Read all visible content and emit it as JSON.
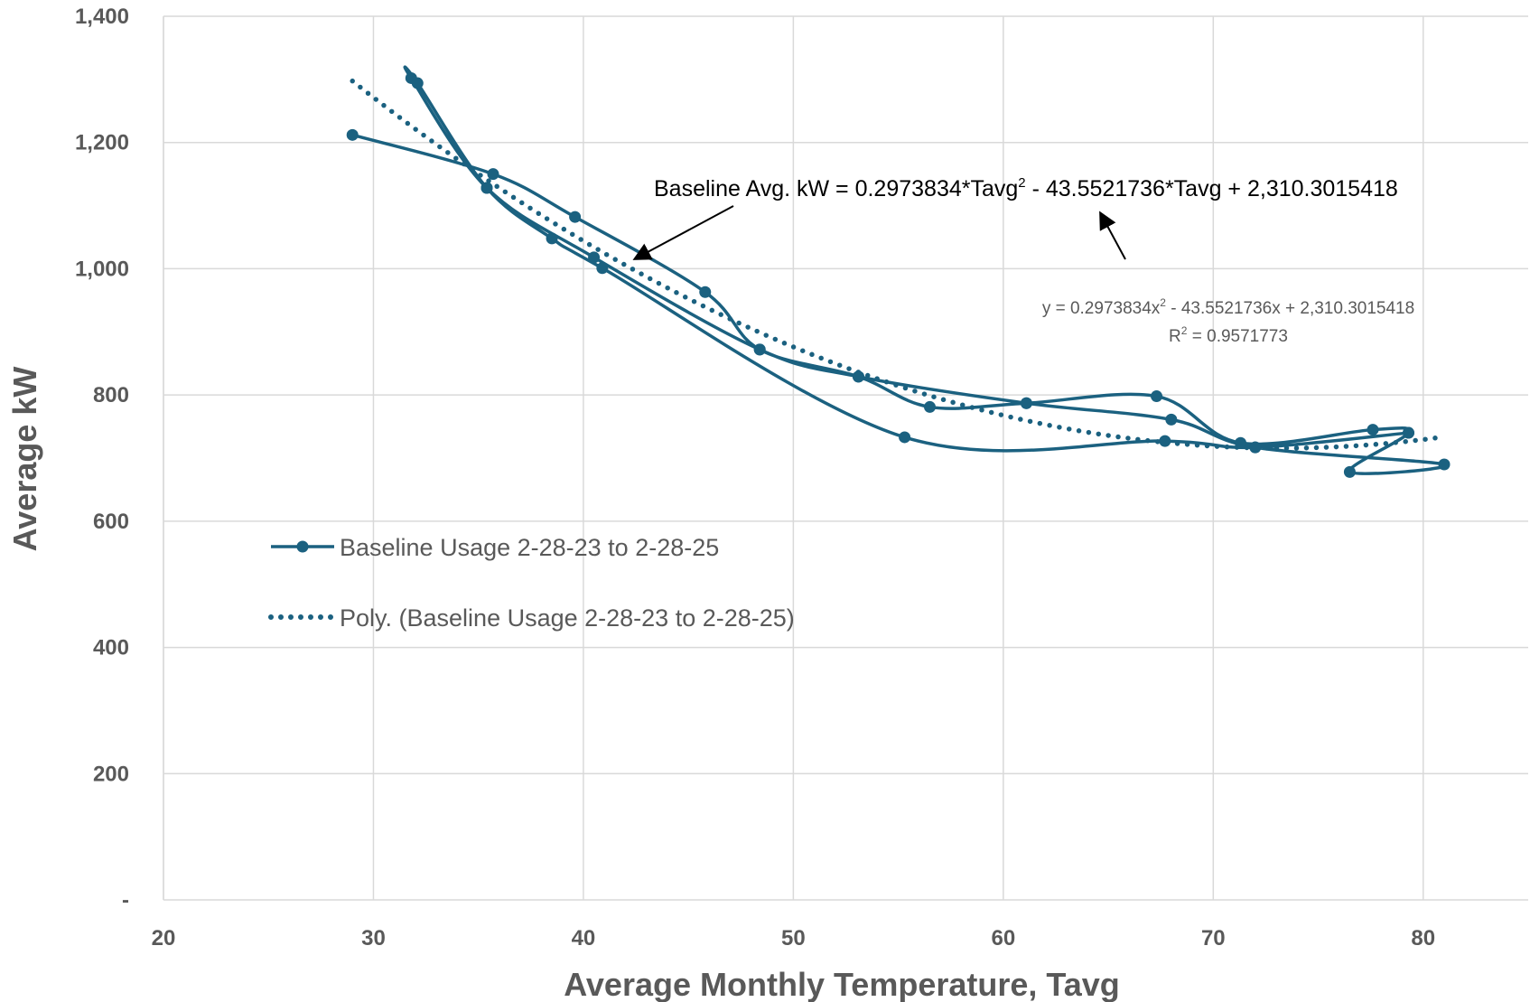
{
  "chart_data": {
    "type": "scatter",
    "xlabel": "Average Monthly Temperature, Tavg",
    "ylabel": "Average kW",
    "xlim": [
      20,
      85
    ],
    "ylim": [
      0,
      1400
    ],
    "xticks": [
      20,
      30,
      40,
      50,
      60,
      70,
      80
    ],
    "yticks": [
      {
        "value": 0,
        "label": "-"
      },
      {
        "value": 200,
        "label": "200"
      },
      {
        "value": 400,
        "label": "400"
      },
      {
        "value": 600,
        "label": "600"
      },
      {
        "value": 800,
        "label": "800"
      },
      {
        "value": 1000,
        "label": "1,000"
      },
      {
        "value": 1200,
        "label": "1,200"
      },
      {
        "value": 1400,
        "label": "1,400"
      }
    ],
    "grid": true,
    "legend_position": "left",
    "colors": {
      "series": "#1b6180",
      "grid": "#d9d9d9",
      "text": "#595959"
    },
    "series": [
      {
        "name": "Baseline Usage 2-28-23 to 2-28-25",
        "style": "smooth-line-markers",
        "points": [
          [
            29.0,
            1212
          ],
          [
            35.7,
            1150
          ],
          [
            39.6,
            1082
          ],
          [
            45.8,
            963
          ],
          [
            48.4,
            872
          ],
          [
            53.1,
            829
          ],
          [
            56.5,
            781
          ],
          [
            61.1,
            787
          ],
          [
            67.3,
            798
          ],
          [
            71.3,
            724
          ],
          [
            77.6,
            745
          ],
          [
            79.3,
            740
          ],
          [
            76.5,
            678
          ],
          [
            81.0,
            690
          ],
          [
            72.0,
            717
          ],
          [
            68.0,
            761
          ],
          [
            61.1,
            787
          ],
          [
            53.1,
            829
          ],
          [
            48.4,
            872
          ],
          [
            40.5,
            1018
          ],
          [
            35.4,
            1128
          ],
          [
            31.8,
            1302
          ],
          [
            32.1,
            1294
          ],
          [
            35.4,
            1128
          ],
          [
            38.5,
            1048
          ],
          [
            40.9,
            1001
          ],
          [
            55.3,
            733
          ],
          [
            67.7,
            727
          ],
          [
            72.0,
            717
          ],
          [
            79.3,
            740
          ]
        ]
      },
      {
        "name": "Poly. (Baseline Usage 2-28-23 to 2-28-25)",
        "style": "dotted-trendline",
        "coefficients": {
          "a": 0.2973834,
          "b": -43.5521736,
          "c": 2310.3015418
        },
        "x_range": [
          29.0,
          81.0
        ]
      }
    ],
    "annotations": {
      "equation_prefix": "Baseline Avg. kW = 0.2973834*Tavg",
      "equation_suffix": " - 43.5521736*Tavg + 2,310.3015418",
      "superscript": "2",
      "trend_line1_prefix": "y = 0.2973834x",
      "trend_line1_suffix": " - 43.5521736x + 2,310.3015418",
      "trend_line2_prefix": "R",
      "trend_line2_suffix": " = 0.9571773"
    }
  }
}
